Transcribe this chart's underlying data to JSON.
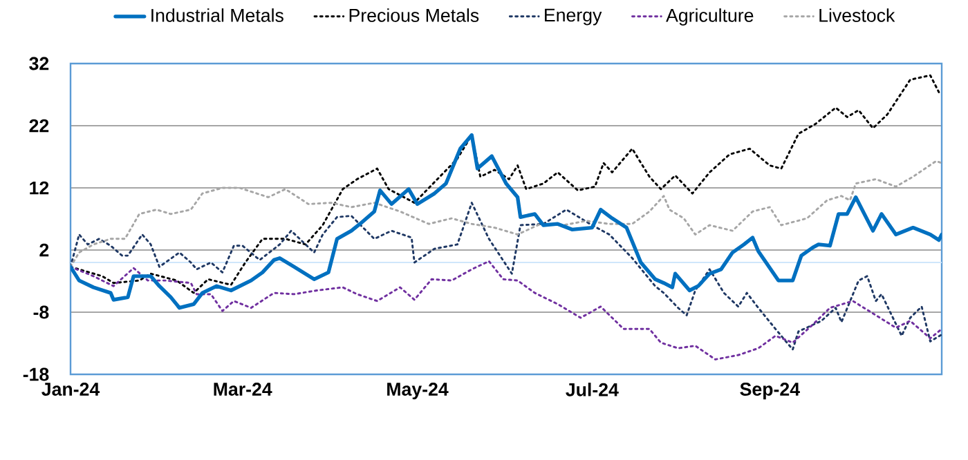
{
  "chart_data": {
    "type": "line",
    "xlim": [
      "2024-01-01",
      "2024-10-31"
    ],
    "xticks": [
      {
        "value": "2024-01-01",
        "label": "Jan-24"
      },
      {
        "value": "2024-03-01",
        "label": "Mar-24"
      },
      {
        "value": "2024-05-01",
        "label": "May-24"
      },
      {
        "value": "2024-07-01",
        "label": "Jul-24"
      },
      {
        "value": "2024-09-01",
        "label": "Sep-24"
      }
    ],
    "ylim": [
      -18,
      32
    ],
    "yticks": [
      -18,
      -8,
      2,
      12,
      22,
      32
    ],
    "grid": "y",
    "legend": "top",
    "marker": "none",
    "ref_lines": [
      {
        "axis": "y",
        "value": 0,
        "color": "#cfe6fb"
      }
    ],
    "series": [
      {
        "name": "Industrial Metals",
        "color": "#0070c0",
        "line_style": "solid",
        "x": [
          "2024-01-01",
          "2024-01-04",
          "2024-01-09",
          "2024-01-15",
          "2024-01-16",
          "2024-01-21",
          "2024-01-23",
          "2024-01-29",
          "2024-02-01",
          "2024-02-05",
          "2024-02-08",
          "2024-02-13",
          "2024-02-16",
          "2024-02-21",
          "2024-02-26",
          "2024-03-04",
          "2024-03-08",
          "2024-03-12",
          "2024-03-14",
          "2024-03-19",
          "2024-03-26",
          "2024-03-31",
          "2024-04-03",
          "2024-04-08",
          "2024-04-11",
          "2024-04-16",
          "2024-04-18",
          "2024-04-22",
          "2024-04-28",
          "2024-05-01",
          "2024-05-07",
          "2024-05-11",
          "2024-05-16",
          "2024-05-20",
          "2024-05-22",
          "2024-05-27",
          "2024-06-01",
          "2024-06-05",
          "2024-06-06",
          "2024-06-11",
          "2024-06-14",
          "2024-06-19",
          "2024-06-24",
          "2024-07-01",
          "2024-07-04",
          "2024-07-08",
          "2024-07-13",
          "2024-07-18",
          "2024-07-23",
          "2024-07-26",
          "2024-07-29",
          "2024-07-30",
          "2024-08-04",
          "2024-08-07",
          "2024-08-11",
          "2024-08-15",
          "2024-08-19",
          "2024-08-23",
          "2024-08-26",
          "2024-08-28",
          "2024-09-04",
          "2024-09-09",
          "2024-09-12",
          "2024-09-16",
          "2024-09-18",
          "2024-09-22",
          "2024-09-25",
          "2024-09-28",
          "2024-10-01",
          "2024-10-07",
          "2024-10-10",
          "2024-10-15",
          "2024-10-21",
          "2024-10-27",
          "2024-10-30",
          "2024-10-31"
        ],
        "values": [
          -0.7,
          -2.9,
          -4.0,
          -4.9,
          -6.0,
          -5.6,
          -2.2,
          -2.2,
          -3.8,
          -5.6,
          -7.3,
          -6.7,
          -4.9,
          -3.8,
          -4.5,
          -2.9,
          -1.6,
          0.4,
          0.7,
          -0.7,
          -2.7,
          -1.6,
          3.8,
          5.1,
          6.2,
          8.2,
          11.6,
          9.4,
          11.8,
          9.4,
          11.1,
          12.7,
          18.3,
          20.5,
          15.1,
          17.1,
          12.7,
          10.5,
          7.3,
          7.8,
          6.0,
          6.2,
          5.3,
          5.6,
          8.5,
          7.1,
          5.6,
          0,
          -2.7,
          -3.3,
          -4.0,
          -1.8,
          -4.5,
          -3.8,
          -1.8,
          -1.1,
          1.6,
          2.9,
          4.0,
          1.8,
          -2.9,
          -2.9,
          1.1,
          2.4,
          2.9,
          2.7,
          7.8,
          7.8,
          10.5,
          5.1,
          7.8,
          4.5,
          5.6,
          4.5,
          3.6,
          4.5
        ]
      },
      {
        "name": "Precious Metals",
        "color": "#000000",
        "line_style": "dotted",
        "x": [
          "2024-01-01",
          "2024-01-12",
          "2024-01-16",
          "2024-01-25",
          "2024-01-29",
          "2024-02-07",
          "2024-02-13",
          "2024-02-18",
          "2024-02-26",
          "2024-03-02",
          "2024-03-08",
          "2024-03-16",
          "2024-03-23",
          "2024-03-29",
          "2024-04-05",
          "2024-04-10",
          "2024-04-17",
          "2024-04-21",
          "2024-04-30",
          "2024-05-08",
          "2024-05-15",
          "2024-05-20",
          "2024-05-23",
          "2024-05-28",
          "2024-06-02",
          "2024-06-05",
          "2024-06-08",
          "2024-06-14",
          "2024-06-19",
          "2024-06-26",
          "2024-07-02",
          "2024-07-05",
          "2024-07-08",
          "2024-07-15",
          "2024-07-21",
          "2024-07-25",
          "2024-07-30",
          "2024-08-05",
          "2024-08-11",
          "2024-08-18",
          "2024-08-25",
          "2024-09-01",
          "2024-09-05",
          "2024-09-11",
          "2024-09-17",
          "2024-09-24",
          "2024-09-28",
          "2024-10-02",
          "2024-10-07",
          "2024-10-12",
          "2024-10-20",
          "2024-10-27",
          "2024-10-30"
        ],
        "values": [
          -0.7,
          -2.2,
          -3.3,
          -2.9,
          -1.8,
          -2.9,
          -4.9,
          -2.7,
          -3.6,
          0,
          3.8,
          3.8,
          2.9,
          6.0,
          11.8,
          13.4,
          15.1,
          11.8,
          9.6,
          13.4,
          16.7,
          20.5,
          13.8,
          14.9,
          13.4,
          15.6,
          11.8,
          12.7,
          14.5,
          11.6,
          12.2,
          16.0,
          14.5,
          18.3,
          13.8,
          11.8,
          14.0,
          11.1,
          14.5,
          17.4,
          18.3,
          15.6,
          15.1,
          20.7,
          22.3,
          24.9,
          23.4,
          24.5,
          21.6,
          23.8,
          29.4,
          30.1,
          27.4
        ]
      },
      {
        "name": "Energy",
        "color": "#1f3864",
        "line_style": "dotted",
        "x": [
          "2024-01-01",
          "2024-01-04",
          "2024-01-07",
          "2024-01-11",
          "2024-01-15",
          "2024-01-19",
          "2024-01-21",
          "2024-01-26",
          "2024-01-29",
          "2024-02-01",
          "2024-02-08",
          "2024-02-12",
          "2024-02-14",
          "2024-02-19",
          "2024-02-23",
          "2024-02-27",
          "2024-03-01",
          "2024-03-07",
          "2024-03-14",
          "2024-03-18",
          "2024-03-23",
          "2024-03-26",
          "2024-03-29",
          "2024-04-03",
          "2024-04-08",
          "2024-04-16",
          "2024-04-22",
          "2024-04-29",
          "2024-04-30",
          "2024-05-07",
          "2024-05-15",
          "2024-05-20",
          "2024-05-26",
          "2024-06-03",
          "2024-06-06",
          "2024-06-14",
          "2024-06-22",
          "2024-07-01",
          "2024-07-07",
          "2024-07-15",
          "2024-07-23",
          "2024-07-26",
          "2024-07-31",
          "2024-08-03",
          "2024-08-06",
          "2024-08-11",
          "2024-08-16",
          "2024-08-21",
          "2024-08-24",
          "2024-08-28",
          "2024-09-03",
          "2024-09-09",
          "2024-09-11",
          "2024-09-19",
          "2024-09-24",
          "2024-09-26",
          "2024-10-02",
          "2024-10-05",
          "2024-10-08",
          "2024-10-10",
          "2024-10-17",
          "2024-10-20",
          "2024-10-24",
          "2024-10-27",
          "2024-10-31"
        ],
        "values": [
          -0.7,
          4.5,
          2.9,
          3.8,
          2.7,
          1.1,
          1.1,
          4.5,
          2.9,
          -0.7,
          1.6,
          0,
          -1.1,
          0,
          -1.6,
          2.7,
          2.7,
          0.4,
          2.9,
          5.1,
          2.9,
          1.6,
          4.5,
          7.3,
          7.5,
          3.8,
          5.1,
          4.0,
          0,
          2.2,
          2.9,
          9.6,
          3.8,
          -1.8,
          6.0,
          6.2,
          8.5,
          6.0,
          4.5,
          0.7,
          -3.8,
          -4.9,
          -7.3,
          -8.5,
          -4.5,
          -1.1,
          -4.9,
          -7.1,
          -4.9,
          -7.3,
          -10.7,
          -14.0,
          -11.1,
          -9.4,
          -7.3,
          -9.6,
          -2.9,
          -2.2,
          -6.2,
          -5.1,
          -11.8,
          -8.9,
          -7.1,
          -12.7,
          -11.6
        ]
      },
      {
        "name": "Agriculture",
        "color": "#7030a0",
        "line_style": "dotted",
        "x": [
          "2024-01-01",
          "2024-01-09",
          "2024-01-16",
          "2024-01-23",
          "2024-01-28",
          "2024-02-03",
          "2024-02-12",
          "2024-02-14",
          "2024-02-19",
          "2024-02-23",
          "2024-02-27",
          "2024-03-04",
          "2024-03-12",
          "2024-03-19",
          "2024-03-27",
          "2024-04-05",
          "2024-04-10",
          "2024-04-17",
          "2024-04-25",
          "2024-04-30",
          "2024-05-06",
          "2024-05-13",
          "2024-05-20",
          "2024-05-26",
          "2024-05-31",
          "2024-06-05",
          "2024-06-11",
          "2024-06-19",
          "2024-06-27",
          "2024-07-04",
          "2024-07-12",
          "2024-07-21",
          "2024-07-25",
          "2024-07-31",
          "2024-08-06",
          "2024-08-13",
          "2024-08-21",
          "2024-08-28",
          "2024-09-03",
          "2024-09-09",
          "2024-09-16",
          "2024-09-22",
          "2024-09-30",
          "2024-10-07",
          "2024-10-15",
          "2024-10-20",
          "2024-10-27",
          "2024-10-31"
        ],
        "values": [
          -0.7,
          -2.2,
          -3.8,
          -0.9,
          -2.9,
          -2.9,
          -3.3,
          -5.1,
          -5.1,
          -7.8,
          -6.2,
          -7.3,
          -4.9,
          -5.1,
          -4.5,
          -4.0,
          -5.1,
          -6.2,
          -4.0,
          -6.0,
          -2.7,
          -2.9,
          -1.1,
          0.2,
          -2.7,
          -2.9,
          -4.9,
          -6.7,
          -8.9,
          -7.1,
          -10.7,
          -10.7,
          -12.9,
          -13.8,
          -13.4,
          -15.6,
          -14.9,
          -13.8,
          -11.8,
          -12.9,
          -10.0,
          -7.3,
          -6.2,
          -8.2,
          -10.5,
          -9.4,
          -12.2,
          -10.7
        ]
      },
      {
        "name": "Livestock",
        "color": "#a6a6a6",
        "line_style": "dotted",
        "x": [
          "2024-01-01",
          "2024-01-04",
          "2024-01-09",
          "2024-01-15",
          "2024-01-20",
          "2024-01-25",
          "2024-01-31",
          "2024-02-05",
          "2024-02-12",
          "2024-02-16",
          "2024-02-23",
          "2024-02-29",
          "2024-03-10",
          "2024-03-16",
          "2024-03-24",
          "2024-04-01",
          "2024-04-08",
          "2024-04-16",
          "2024-04-25",
          "2024-05-05",
          "2024-05-13",
          "2024-05-20",
          "2024-05-28",
          "2024-06-05",
          "2024-06-13",
          "2024-06-21",
          "2024-06-29",
          "2024-07-07",
          "2024-07-15",
          "2024-07-21",
          "2024-07-26",
          "2024-07-28",
          "2024-08-02",
          "2024-08-06",
          "2024-08-11",
          "2024-08-19",
          "2024-08-26",
          "2024-09-01",
          "2024-09-05",
          "2024-09-14",
          "2024-09-21",
          "2024-09-26",
          "2024-09-29",
          "2024-10-01",
          "2024-10-08",
          "2024-10-15",
          "2024-10-21",
          "2024-10-29",
          "2024-10-31"
        ],
        "values": [
          -0.7,
          1.6,
          2.9,
          3.8,
          3.8,
          7.8,
          8.5,
          7.8,
          8.5,
          11.1,
          12.0,
          12.0,
          10.5,
          11.8,
          9.4,
          9.6,
          8.9,
          9.6,
          8.2,
          6.2,
          7.1,
          6.2,
          5.6,
          4.5,
          6.2,
          6.0,
          6.7,
          6.2,
          6.2,
          8.2,
          10.7,
          8.5,
          7.1,
          4.5,
          6.0,
          5.1,
          8.2,
          8.9,
          6.0,
          7.1,
          10.0,
          10.7,
          10.0,
          12.7,
          13.4,
          12.2,
          13.8,
          16.3,
          16.0
        ]
      }
    ]
  }
}
